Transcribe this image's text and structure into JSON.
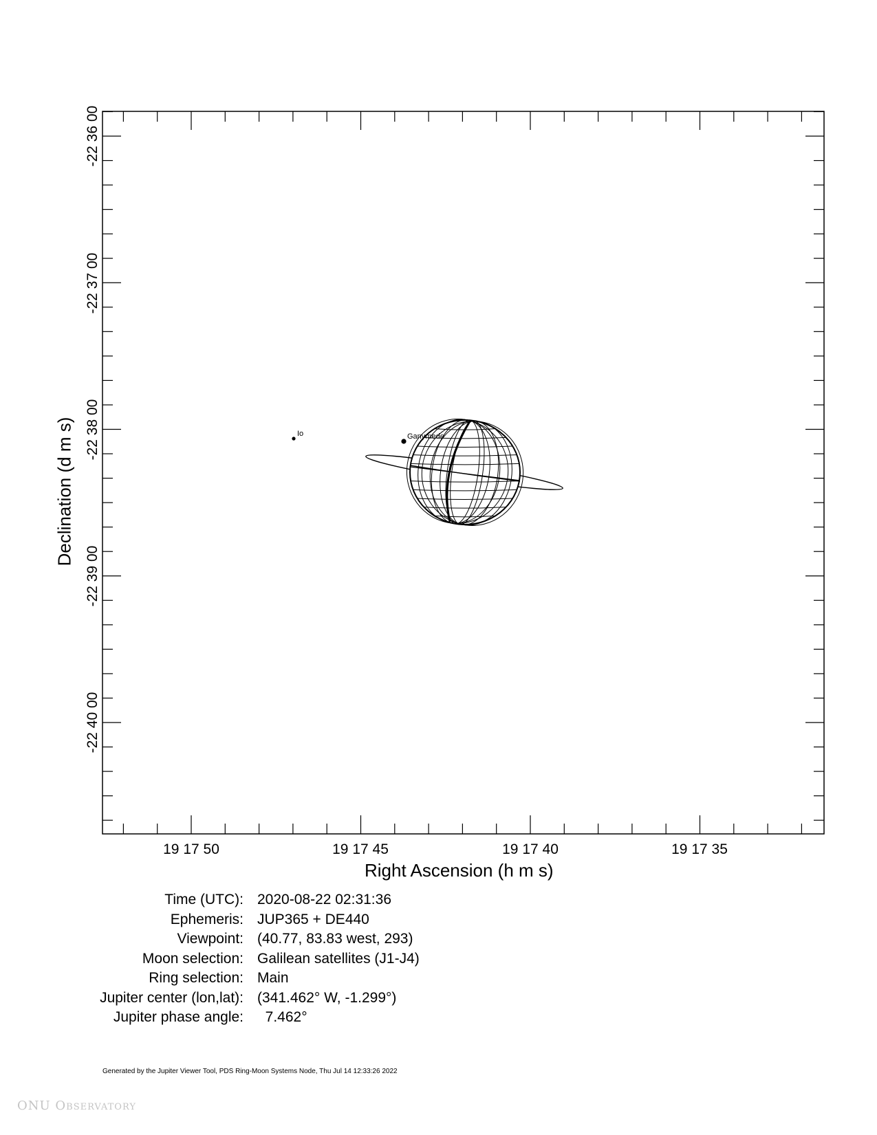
{
  "chart_data": {
    "type": "diagram",
    "xlabel": "Right Ascension (h m s)",
    "ylabel": "Declination (d m s)",
    "x_ticks": [
      "19 17 50",
      "19 17 45",
      "19 17 40",
      "19 17 35"
    ],
    "y_ticks": [
      "-22 36 00",
      "-22 37 00",
      "-22 38 00",
      "-22 39 00",
      "-22 40 00"
    ],
    "moons": [
      {
        "name": "Io"
      },
      {
        "name": "Ganymede"
      }
    ],
    "planet": "Jupiter",
    "grid": false
  },
  "info": {
    "rows": [
      {
        "label": "Time (UTC):",
        "value": "2020-08-22 02:31:36"
      },
      {
        "label": "Ephemeris:",
        "value": "JUP365 + DE440"
      },
      {
        "label": "Viewpoint:",
        "value": "(40.77, 83.83 west, 293)"
      },
      {
        "label": "Moon selection:",
        "value": "Galilean satellites (J1-J4)"
      },
      {
        "label": "Ring selection:",
        "value": "Main"
      },
      {
        "label": "Jupiter center (lon,lat):",
        "value": "(341.462° W, -1.299°)"
      },
      {
        "label": "Jupiter phase angle:",
        "value": "  7.462°"
      }
    ]
  },
  "footer": "Generated by the Jupiter Viewer Tool, PDS Ring-Moon Systems Node, Thu Jul 14 12:33:26 2022",
  "watermark": "ONU Observatory"
}
